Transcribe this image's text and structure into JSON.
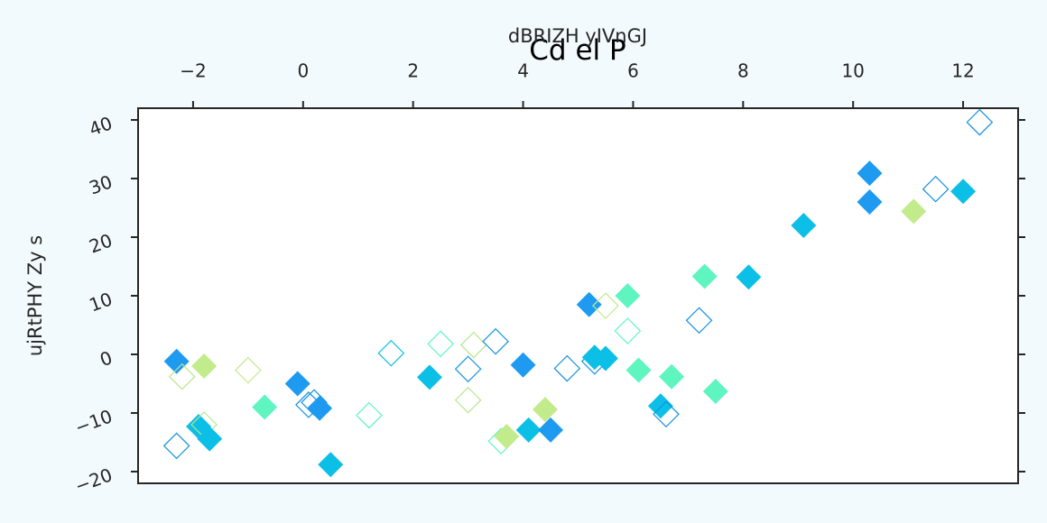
{
  "chart_data": {
    "type": "scatter",
    "title": "Cd el P",
    "xlabel": "dBRIZH yIVnGJ",
    "ylabel": "ujRtPHY Zy s",
    "xlim": [
      -3,
      13
    ],
    "ylim": [
      -22,
      42
    ],
    "xticks": [
      -2,
      0,
      2,
      4,
      6,
      8,
      10,
      12
    ],
    "yticks": [
      -20,
      -10,
      0,
      10,
      20,
      30,
      40
    ],
    "x_axis_position": "top",
    "grid": false,
    "legend": "none",
    "colors": [
      "#1e9bf0",
      "#0cbfe6",
      "#5ff5c0",
      "#c2eb8c",
      "#1591e0"
    ],
    "series": [
      {
        "marker": "diamond",
        "points": [
          {
            "x": -2.3,
            "y": -1.2,
            "color": "#1e9bf0",
            "filled": true
          },
          {
            "x": -2.3,
            "y": -15.6,
            "color": "#0f93d9",
            "filled": false
          },
          {
            "x": -2.2,
            "y": -3.8,
            "color": "#b8e68a",
            "filled": false
          },
          {
            "x": -1.8,
            "y": -2.0,
            "color": "#c2eb8c",
            "filled": true
          },
          {
            "x": -1.9,
            "y": -12.3,
            "color": "#0cbfe6",
            "filled": true
          },
          {
            "x": -1.8,
            "y": -12.0,
            "color": "#b8e68a",
            "filled": false
          },
          {
            "x": -1.7,
            "y": -14.4,
            "color": "#0cbfe6",
            "filled": true
          },
          {
            "x": -1.0,
            "y": -2.7,
            "color": "#c2eb8c",
            "filled": false
          },
          {
            "x": -0.7,
            "y": -9.0,
            "color": "#5ff5c0",
            "filled": true
          },
          {
            "x": -0.1,
            "y": -5.0,
            "color": "#1e9bf0",
            "filled": true
          },
          {
            "x": 0.1,
            "y": -8.6,
            "color": "#1591e0",
            "filled": false
          },
          {
            "x": 0.2,
            "y": -8.2,
            "color": "#1591e0",
            "filled": false
          },
          {
            "x": 0.3,
            "y": -9.2,
            "color": "#1e9bf0",
            "filled": true
          },
          {
            "x": 0.5,
            "y": -18.8,
            "color": "#0cbfe6",
            "filled": true
          },
          {
            "x": 1.2,
            "y": -10.4,
            "color": "#5ff5c0",
            "filled": false
          },
          {
            "x": 1.6,
            "y": 0.2,
            "color": "#0cbfe6",
            "filled": false
          },
          {
            "x": 2.3,
            "y": -3.9,
            "color": "#0cbfe6",
            "filled": true
          },
          {
            "x": 2.5,
            "y": 1.8,
            "color": "#5ff5c0",
            "filled": false
          },
          {
            "x": 3.0,
            "y": -2.5,
            "color": "#1591e0",
            "filled": false
          },
          {
            "x": 3.0,
            "y": -7.8,
            "color": "#b8e68a",
            "filled": false
          },
          {
            "x": 3.1,
            "y": 1.6,
            "color": "#b8e68a",
            "filled": false
          },
          {
            "x": 3.5,
            "y": 2.2,
            "color": "#1591e0",
            "filled": false
          },
          {
            "x": 3.6,
            "y": -14.8,
            "color": "#5ff5c0",
            "filled": false
          },
          {
            "x": 3.7,
            "y": -14.0,
            "color": "#c2eb8c",
            "filled": true
          },
          {
            "x": 4.0,
            "y": -1.8,
            "color": "#1e9bf0",
            "filled": true
          },
          {
            "x": 4.1,
            "y": -12.9,
            "color": "#0cbfe6",
            "filled": true
          },
          {
            "x": 4.4,
            "y": -9.4,
            "color": "#c2eb8c",
            "filled": true
          },
          {
            "x": 4.5,
            "y": -12.9,
            "color": "#1e9bf0",
            "filled": true
          },
          {
            "x": 4.8,
            "y": -2.4,
            "color": "#1591e0",
            "filled": false
          },
          {
            "x": 5.2,
            "y": 8.5,
            "color": "#1e9bf0",
            "filled": true
          },
          {
            "x": 5.3,
            "y": -1.2,
            "color": "#1591e0",
            "filled": false
          },
          {
            "x": 5.3,
            "y": -0.5,
            "color": "#0cbfe6",
            "filled": true
          },
          {
            "x": 5.5,
            "y": -0.7,
            "color": "#0cbfe6",
            "filled": true
          },
          {
            "x": 5.5,
            "y": 8.3,
            "color": "#c2eb8c",
            "filled": false
          },
          {
            "x": 5.9,
            "y": 10.0,
            "color": "#5ff5c0",
            "filled": true
          },
          {
            "x": 5.9,
            "y": 4.0,
            "color": "#5ff5c0",
            "filled": false
          },
          {
            "x": 6.1,
            "y": -2.7,
            "color": "#5ff5c0",
            "filled": true
          },
          {
            "x": 6.5,
            "y": -8.8,
            "color": "#0cbfe6",
            "filled": true
          },
          {
            "x": 6.6,
            "y": -10.2,
            "color": "#1591e0",
            "filled": false
          },
          {
            "x": 6.7,
            "y": -3.8,
            "color": "#5ff5c0",
            "filled": true
          },
          {
            "x": 7.2,
            "y": 5.8,
            "color": "#1591e0",
            "filled": false
          },
          {
            "x": 7.3,
            "y": 13.3,
            "color": "#5ff5c0",
            "filled": true
          },
          {
            "x": 7.5,
            "y": -6.3,
            "color": "#5ff5c0",
            "filled": true
          },
          {
            "x": 8.1,
            "y": 13.2,
            "color": "#0cbfe6",
            "filled": true
          },
          {
            "x": 9.1,
            "y": 22.0,
            "color": "#0cbfe6",
            "filled": true
          },
          {
            "x": 10.3,
            "y": 26.0,
            "color": "#1e9bf0",
            "filled": true
          },
          {
            "x": 10.3,
            "y": 30.9,
            "color": "#1e9bf0",
            "filled": true
          },
          {
            "x": 11.1,
            "y": 24.4,
            "color": "#c2eb8c",
            "filled": true
          },
          {
            "x": 11.5,
            "y": 28.2,
            "color": "#1591e0",
            "filled": false
          },
          {
            "x": 12.0,
            "y": 27.8,
            "color": "#0cbfe6",
            "filled": true
          },
          {
            "x": 12.3,
            "y": 39.6,
            "color": "#1591e0",
            "filled": false
          }
        ]
      }
    ]
  }
}
